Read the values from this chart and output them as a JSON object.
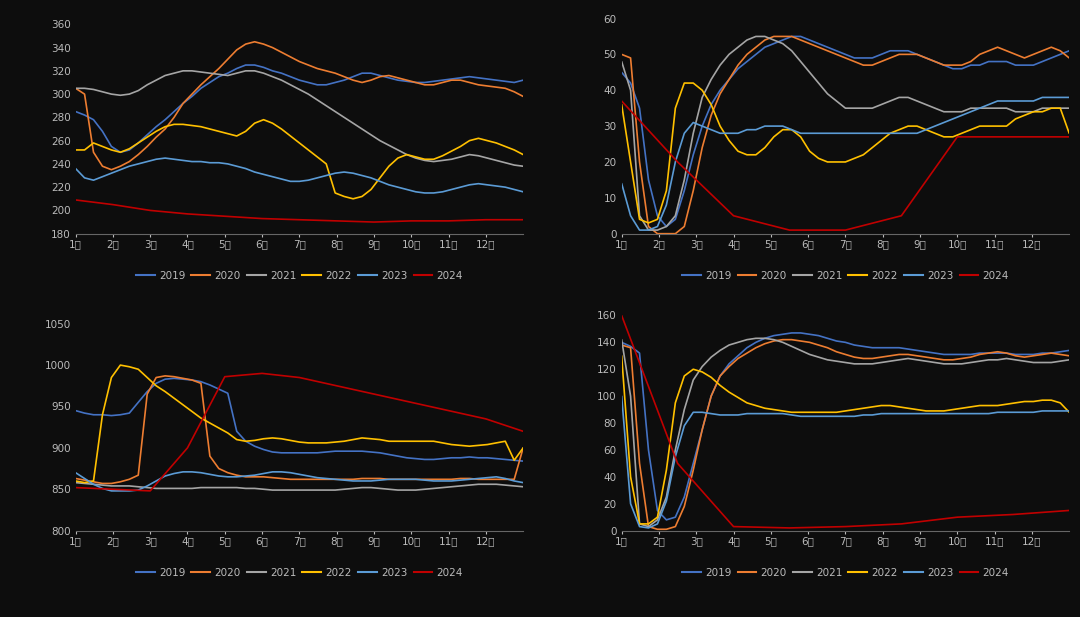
{
  "background_color": "#0d0d0d",
  "text_color": "#bbbbbb",
  "line_colors": {
    "2019": "#4472c4",
    "2020": "#ed7d31",
    "2021": "#a5a5a5",
    "2022": "#ffc000",
    "2023": "#5b9bd5",
    "2024": "#c00000"
  },
  "legend_order": [
    "2019",
    "2020",
    "2021",
    "2022",
    "2023",
    "2024"
  ],
  "x_labels": [
    "1月",
    "2月",
    "3月",
    "4月",
    "5月",
    "6月",
    "7月",
    "8月",
    "9月",
    "10月",
    "11月",
    "12月"
  ],
  "subplot_configs": [
    {
      "ylim": [
        180,
        365
      ],
      "yticks": [
        180,
        200,
        220,
        240,
        260,
        280,
        300,
        320,
        340,
        360
      ]
    },
    {
      "ylim": [
        0,
        60
      ],
      "yticks": [
        0,
        10,
        20,
        30,
        40,
        50,
        60
      ]
    },
    {
      "ylim": [
        800,
        1060
      ],
      "yticks": [
        800,
        850,
        900,
        950,
        1000,
        1050
      ]
    },
    {
      "ylim": [
        0,
        160
      ],
      "yticks": [
        0,
        20,
        40,
        60,
        80,
        100,
        120,
        140,
        160
      ]
    }
  ],
  "series": {
    "plot0": {
      "2019": [
        285,
        282,
        278,
        268,
        255,
        250,
        252,
        258,
        265,
        272,
        278,
        285,
        292,
        298,
        305,
        310,
        315,
        318,
        322,
        325,
        325,
        323,
        320,
        318,
        315,
        312,
        310,
        308,
        308,
        310,
        312,
        315,
        318,
        318,
        316,
        314,
        312,
        311,
        310,
        310,
        311,
        312,
        313,
        314,
        315,
        314,
        313,
        312,
        311,
        310,
        312
      ],
      "2020": [
        305,
        300,
        250,
        238,
        235,
        238,
        242,
        248,
        255,
        263,
        270,
        280,
        292,
        300,
        308,
        315,
        322,
        330,
        338,
        343,
        345,
        343,
        340,
        336,
        332,
        328,
        325,
        322,
        320,
        318,
        315,
        312,
        310,
        312,
        315,
        316,
        314,
        312,
        310,
        308,
        308,
        310,
        312,
        312,
        310,
        308,
        307,
        306,
        305,
        302,
        298
      ],
      "2021": [
        305,
        305,
        304,
        302,
        300,
        299,
        300,
        303,
        308,
        312,
        316,
        318,
        320,
        320,
        319,
        318,
        317,
        316,
        318,
        320,
        320,
        318,
        315,
        312,
        308,
        304,
        300,
        295,
        290,
        285,
        280,
        275,
        270,
        265,
        260,
        256,
        252,
        248,
        245,
        243,
        242,
        243,
        244,
        246,
        248,
        247,
        245,
        243,
        241,
        239,
        238
      ],
      "2022": [
        252,
        252,
        258,
        255,
        252,
        250,
        253,
        258,
        263,
        268,
        272,
        274,
        274,
        273,
        272,
        270,
        268,
        266,
        264,
        268,
        275,
        278,
        275,
        270,
        264,
        258,
        252,
        246,
        240,
        215,
        212,
        210,
        212,
        218,
        228,
        238,
        245,
        248,
        246,
        244,
        244,
        247,
        251,
        255,
        260,
        262,
        260,
        258,
        255,
        252,
        248
      ],
      "2023": [
        236,
        228,
        226,
        229,
        232,
        235,
        238,
        240,
        242,
        244,
        245,
        244,
        243,
        242,
        242,
        241,
        241,
        240,
        238,
        236,
        233,
        231,
        229,
        227,
        225,
        225,
        226,
        228,
        230,
        232,
        233,
        232,
        230,
        228,
        225,
        222,
        220,
        218,
        216,
        215,
        215,
        216,
        218,
        220,
        222,
        223,
        222,
        221,
        220,
        218,
        216
      ],
      "2024": [
        209,
        205,
        200,
        197,
        195,
        193,
        192,
        191,
        190,
        191,
        191,
        192,
        192
      ]
    },
    "plot1": {
      "2019": [
        45,
        42,
        35,
        15,
        5,
        2,
        4,
        12,
        22,
        30,
        36,
        40,
        43,
        46,
        48,
        50,
        52,
        53,
        54,
        55,
        55,
        54,
        53,
        52,
        51,
        50,
        49,
        49,
        49,
        50,
        51,
        51,
        51,
        50,
        49,
        48,
        47,
        46,
        46,
        47,
        47,
        48,
        48,
        48,
        47,
        47,
        47,
        48,
        49,
        50,
        51
      ],
      "2020": [
        50,
        49,
        20,
        2,
        0,
        0,
        0,
        2,
        12,
        24,
        33,
        39,
        43,
        47,
        50,
        52,
        54,
        55,
        55,
        55,
        54,
        53,
        52,
        51,
        50,
        49,
        48,
        47,
        47,
        48,
        49,
        50,
        50,
        50,
        49,
        48,
        47,
        47,
        47,
        48,
        50,
        51,
        52,
        51,
        50,
        49,
        50,
        51,
        52,
        51,
        49
      ],
      "2021": [
        48,
        40,
        5,
        1,
        1,
        2,
        5,
        15,
        28,
        38,
        43,
        47,
        50,
        52,
        54,
        55,
        55,
        54,
        53,
        51,
        48,
        45,
        42,
        39,
        37,
        35,
        35,
        35,
        35,
        36,
        37,
        38,
        38,
        37,
        36,
        35,
        34,
        34,
        34,
        35,
        35,
        35,
        35,
        35,
        34,
        34,
        34,
        35,
        35,
        35,
        35
      ],
      "2022": [
        36,
        20,
        4,
        3,
        4,
        12,
        35,
        42,
        42,
        40,
        36,
        30,
        26,
        23,
        22,
        22,
        24,
        27,
        29,
        29,
        27,
        23,
        21,
        20,
        20,
        20,
        21,
        22,
        24,
        26,
        28,
        29,
        30,
        30,
        29,
        28,
        27,
        27,
        28,
        29,
        30,
        30,
        30,
        30,
        32,
        33,
        34,
        34,
        35,
        35,
        28
      ],
      "2023": [
        14,
        5,
        1,
        1,
        2,
        8,
        20,
        28,
        31,
        30,
        29,
        28,
        28,
        28,
        29,
        29,
        30,
        30,
        30,
        29,
        28,
        28,
        28,
        28,
        28,
        28,
        28,
        28,
        28,
        28,
        28,
        28,
        28,
        28,
        29,
        30,
        31,
        32,
        33,
        34,
        35,
        36,
        37,
        37,
        37,
        37,
        37,
        38,
        38,
        38,
        38
      ],
      "2024": [
        37,
        20,
        5,
        1,
        1,
        5,
        27,
        27,
        27
      ]
    },
    "plot2": {
      "2019": [
        945,
        942,
        940,
        940,
        939,
        940,
        942,
        955,
        968,
        978,
        983,
        984,
        983,
        982,
        980,
        976,
        971,
        966,
        920,
        908,
        902,
        898,
        895,
        894,
        894,
        894,
        894,
        894,
        895,
        896,
        896,
        896,
        896,
        895,
        894,
        892,
        890,
        888,
        887,
        886,
        886,
        887,
        888,
        888,
        889,
        888,
        888,
        887,
        886,
        885,
        884
      ],
      "2020": [
        863,
        861,
        859,
        857,
        857,
        859,
        862,
        867,
        965,
        985,
        987,
        986,
        984,
        982,
        978,
        890,
        875,
        870,
        867,
        865,
        865,
        865,
        864,
        863,
        862,
        862,
        862,
        862,
        862,
        862,
        862,
        862,
        863,
        863,
        863,
        862,
        862,
        862,
        862,
        862,
        862,
        862,
        862,
        863,
        863,
        862,
        862,
        862,
        862,
        862,
        900
      ],
      "2021": [
        858,
        857,
        856,
        855,
        854,
        854,
        854,
        853,
        852,
        851,
        851,
        851,
        851,
        851,
        852,
        852,
        852,
        852,
        852,
        851,
        851,
        850,
        849,
        849,
        849,
        849,
        849,
        849,
        849,
        849,
        850,
        851,
        852,
        852,
        851,
        850,
        849,
        849,
        849,
        850,
        851,
        852,
        853,
        854,
        855,
        856,
        856,
        856,
        855,
        854,
        853
      ],
      "2022": [
        860,
        858,
        860,
        940,
        985,
        1000,
        998,
        995,
        985,
        975,
        968,
        960,
        952,
        944,
        936,
        930,
        924,
        918,
        910,
        908,
        909,
        911,
        912,
        911,
        909,
        907,
        906,
        906,
        906,
        907,
        908,
        910,
        912,
        911,
        910,
        908,
        908,
        908,
        908,
        908,
        908,
        906,
        904,
        903,
        902,
        903,
        904,
        906,
        908,
        885,
        900
      ],
      "2023": [
        870,
        863,
        856,
        851,
        848,
        848,
        848,
        849,
        854,
        860,
        866,
        869,
        871,
        871,
        870,
        868,
        866,
        865,
        865,
        866,
        867,
        869,
        871,
        871,
        870,
        868,
        866,
        864,
        863,
        862,
        861,
        860,
        860,
        860,
        861,
        862,
        862,
        862,
        862,
        861,
        860,
        860,
        860,
        861,
        862,
        863,
        864,
        865,
        863,
        860,
        858
      ],
      "2024": [
        852,
        850,
        848,
        900,
        986,
        990,
        985,
        975,
        965,
        955,
        945,
        935,
        920
      ]
    },
    "plot3": {
      "2019": [
        140,
        137,
        132,
        60,
        15,
        8,
        10,
        25,
        50,
        75,
        100,
        115,
        124,
        130,
        136,
        140,
        143,
        145,
        146,
        147,
        147,
        146,
        145,
        143,
        141,
        140,
        138,
        137,
        136,
        136,
        136,
        136,
        135,
        134,
        133,
        132,
        131,
        131,
        131,
        131,
        132,
        132,
        132,
        132,
        131,
        131,
        131,
        132,
        132,
        133,
        134
      ],
      "2020": [
        138,
        136,
        50,
        3,
        1,
        1,
        3,
        18,
        45,
        75,
        100,
        115,
        122,
        128,
        132,
        136,
        139,
        141,
        142,
        142,
        141,
        140,
        138,
        136,
        133,
        131,
        129,
        128,
        128,
        129,
        130,
        131,
        131,
        130,
        129,
        128,
        127,
        127,
        128,
        129,
        131,
        132,
        133,
        132,
        130,
        129,
        130,
        131,
        132,
        131,
        130
      ],
      "2021": [
        142,
        100,
        5,
        3,
        8,
        25,
        60,
        90,
        112,
        122,
        129,
        134,
        138,
        140,
        142,
        143,
        143,
        142,
        140,
        137,
        134,
        131,
        129,
        127,
        126,
        125,
        124,
        124,
        124,
        125,
        126,
        127,
        128,
        127,
        126,
        125,
        124,
        124,
        124,
        125,
        126,
        127,
        127,
        128,
        127,
        126,
        125,
        125,
        125,
        126,
        127
      ],
      "2022": [
        130,
        40,
        5,
        5,
        10,
        45,
        95,
        115,
        120,
        118,
        114,
        108,
        103,
        99,
        95,
        93,
        91,
        90,
        89,
        88,
        88,
        88,
        88,
        88,
        88,
        89,
        90,
        91,
        92,
        93,
        93,
        92,
        91,
        90,
        89,
        89,
        89,
        90,
        91,
        92,
        93,
        93,
        93,
        94,
        95,
        96,
        96,
        97,
        97,
        95,
        88
      ],
      "2023": [
        100,
        20,
        3,
        2,
        5,
        22,
        55,
        78,
        88,
        88,
        87,
        86,
        86,
        86,
        87,
        87,
        87,
        87,
        87,
        86,
        85,
        85,
        85,
        85,
        85,
        85,
        85,
        86,
        86,
        87,
        87,
        87,
        87,
        87,
        87,
        87,
        87,
        87,
        87,
        87,
        87,
        87,
        88,
        88,
        88,
        88,
        88,
        89,
        89,
        89,
        89
      ],
      "2024": [
        160,
        50,
        3,
        2,
        3,
        5,
        10,
        12,
        15
      ]
    }
  }
}
